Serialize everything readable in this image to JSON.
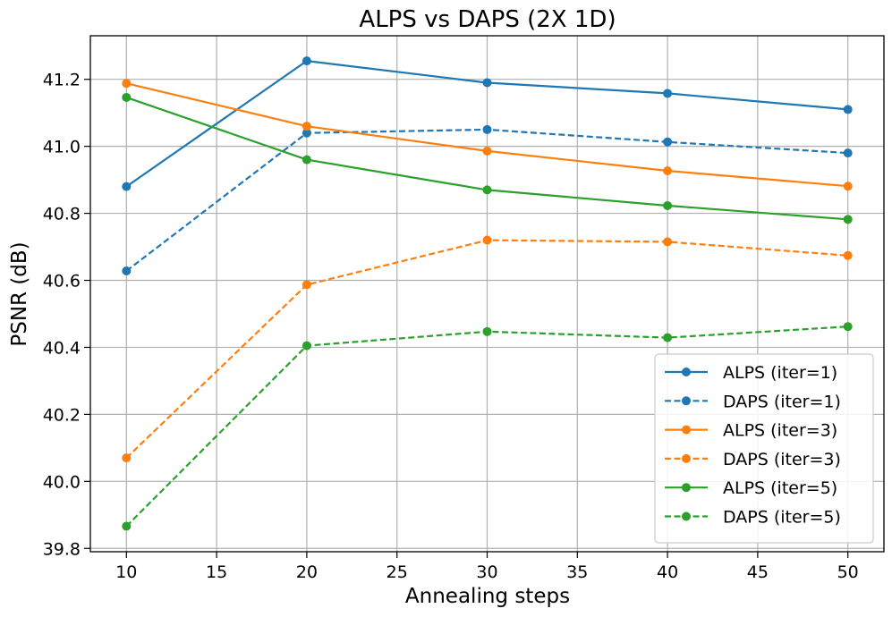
{
  "chart_data": {
    "type": "line",
    "title": "ALPS vs DAPS (2X 1D)",
    "xlabel": "Annealing steps",
    "ylabel": "PSNR (dB)",
    "x": [
      10,
      20,
      30,
      40,
      50
    ],
    "xlim": [
      8,
      52
    ],
    "ylim": [
      39.79,
      41.33
    ],
    "xticks": [
      "10",
      "15",
      "20",
      "25",
      "30",
      "35",
      "40",
      "45",
      "50"
    ],
    "yticks": [
      "39.8",
      "40.0",
      "40.2",
      "40.4",
      "40.6",
      "40.8",
      "41.0",
      "41.2"
    ],
    "grid": true,
    "legend_position": "lower right",
    "series": [
      {
        "name": "ALPS (iter=1)",
        "color": "#1f77b4",
        "style": "solid",
        "values": [
          40.88,
          41.255,
          41.19,
          41.158,
          41.11
        ]
      },
      {
        "name": "DAPS (iter=1)",
        "color": "#1f77b4",
        "style": "dashed",
        "values": [
          40.628,
          41.04,
          41.05,
          41.013,
          40.98
        ]
      },
      {
        "name": "ALPS (iter=3)",
        "color": "#ff7f0e",
        "style": "solid",
        "values": [
          41.188,
          41.06,
          40.986,
          40.927,
          40.881
        ]
      },
      {
        "name": "DAPS (iter=3)",
        "color": "#ff7f0e",
        "style": "dashed",
        "values": [
          40.07,
          40.587,
          40.72,
          40.715,
          40.674
        ]
      },
      {
        "name": "ALPS (iter=5)",
        "color": "#2ca02c",
        "style": "solid",
        "values": [
          41.146,
          40.96,
          40.87,
          40.823,
          40.782
        ]
      },
      {
        "name": "DAPS (iter=5)",
        "color": "#2ca02c",
        "style": "dashed",
        "values": [
          39.866,
          40.405,
          40.447,
          40.429,
          40.462
        ]
      }
    ]
  }
}
